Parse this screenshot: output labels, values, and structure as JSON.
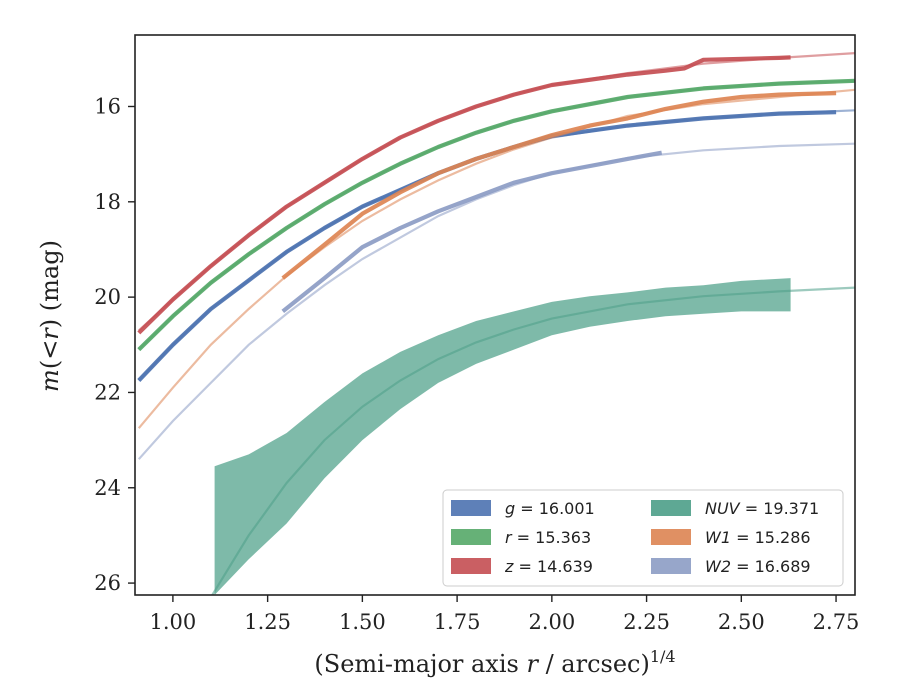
{
  "chart_data": {
    "type": "line",
    "xlabel_main": "(Semi-major axis ",
    "xlabel_r": "r",
    "xlabel_tail": " / arcsec)",
    "xlabel_exp": "1/4",
    "ylabel_main": "m",
    "ylabel_mid": "(<",
    "ylabel_r": "r",
    "ylabel_tail": ") (mag)",
    "xlim": [
      0.9,
      2.8
    ],
    "ylim": [
      26.25,
      14.5
    ],
    "y_inverted": true,
    "x_ticks": [
      1.0,
      1.25,
      1.5,
      1.75,
      2.0,
      2.25,
      2.5,
      2.75
    ],
    "x_tick_labels": [
      "1.00",
      "1.25",
      "1.50",
      "1.75",
      "2.00",
      "2.25",
      "2.50",
      "2.75"
    ],
    "y_ticks": [
      16,
      18,
      20,
      22,
      24,
      26
    ],
    "y_tick_labels": [
      "16",
      "18",
      "20",
      "22",
      "24",
      "26"
    ],
    "grid": false,
    "legend_placement": "lower-right",
    "series": [
      {
        "key": "g",
        "band": "g",
        "label_value": "= 16.001",
        "color": "#4c72b0",
        "model_x": [
          0.91,
          1.0,
          1.1,
          1.2,
          1.3,
          1.4,
          1.5,
          1.6,
          1.7,
          1.8,
          1.9,
          2.0,
          2.2,
          2.4,
          2.6,
          2.8
        ],
        "model_y": [
          21.75,
          21.0,
          20.25,
          19.65,
          19.05,
          18.55,
          18.1,
          17.75,
          17.4,
          17.1,
          16.85,
          16.65,
          16.4,
          16.25,
          16.15,
          16.08
        ],
        "data_x": [
          0.91,
          1.0,
          1.1,
          1.2,
          1.3,
          1.4,
          1.5,
          1.6,
          1.7,
          1.8,
          1.9,
          2.0,
          2.2,
          2.4,
          2.6,
          2.75
        ],
        "data_y": [
          21.75,
          21.0,
          20.25,
          19.65,
          19.05,
          18.55,
          18.1,
          17.75,
          17.4,
          17.1,
          16.85,
          16.62,
          16.4,
          16.25,
          16.15,
          16.12
        ],
        "data_err": []
      },
      {
        "key": "r",
        "band": "r",
        "label_value": "= 15.363",
        "color": "#55a868",
        "model_x": [
          0.91,
          1.0,
          1.1,
          1.2,
          1.3,
          1.4,
          1.5,
          1.6,
          1.7,
          1.8,
          1.9,
          2.0,
          2.2,
          2.4,
          2.6,
          2.8
        ],
        "model_y": [
          21.1,
          20.4,
          19.7,
          19.1,
          18.55,
          18.05,
          17.6,
          17.2,
          16.85,
          16.55,
          16.3,
          16.1,
          15.8,
          15.62,
          15.52,
          15.46
        ],
        "data_x": [
          0.91,
          1.0,
          1.1,
          1.2,
          1.3,
          1.4,
          1.5,
          1.6,
          1.7,
          1.8,
          1.9,
          2.0,
          2.2,
          2.4,
          2.6,
          2.8
        ],
        "data_y": [
          21.1,
          20.4,
          19.7,
          19.1,
          18.55,
          18.05,
          17.6,
          17.2,
          16.85,
          16.55,
          16.3,
          16.1,
          15.8,
          15.62,
          15.52,
          15.46
        ],
        "data_err": []
      },
      {
        "key": "z",
        "band": "z",
        "label_value": "= 14.639",
        "color": "#c44e52",
        "model_x": [
          0.91,
          1.0,
          1.1,
          1.2,
          1.3,
          1.4,
          1.5,
          1.6,
          1.7,
          1.8,
          1.9,
          2.0,
          2.2,
          2.4,
          2.6,
          2.8
        ],
        "model_y": [
          20.7,
          20.05,
          19.35,
          18.7,
          18.1,
          17.6,
          17.1,
          16.65,
          16.3,
          16.0,
          15.75,
          15.55,
          15.3,
          15.1,
          14.98,
          14.88
        ],
        "data_x": [
          0.91,
          1.0,
          1.1,
          1.2,
          1.3,
          1.4,
          1.5,
          1.6,
          1.7,
          1.8,
          1.9,
          2.0,
          2.2,
          2.3,
          2.35,
          2.4,
          2.6,
          2.63
        ],
        "data_y": [
          20.75,
          20.05,
          19.35,
          18.7,
          18.1,
          17.6,
          17.1,
          16.65,
          16.3,
          16.0,
          15.75,
          15.55,
          15.33,
          15.25,
          15.2,
          15.02,
          14.98,
          14.97
        ],
        "data_err": []
      },
      {
        "key": "nuv",
        "band": "NUV",
        "label_value": "= 19.371",
        "color": "#4c9f88",
        "model_x": [
          1.1,
          1.2,
          1.3,
          1.4,
          1.5,
          1.6,
          1.7,
          1.8,
          1.9,
          2.0,
          2.2,
          2.4,
          2.6,
          2.8
        ],
        "model_y": [
          26.3,
          25.0,
          23.9,
          23.0,
          22.3,
          21.75,
          21.3,
          20.95,
          20.68,
          20.45,
          20.15,
          19.98,
          19.88,
          19.8
        ],
        "data_x": [
          1.11,
          1.2,
          1.3,
          1.4,
          1.5,
          1.6,
          1.7,
          1.8,
          1.9,
          2.0,
          2.1,
          2.2,
          2.3,
          2.4,
          2.5,
          2.63
        ],
        "data_y": [
          24.9,
          24.4,
          23.8,
          23.0,
          22.3,
          21.75,
          21.3,
          20.95,
          20.7,
          20.45,
          20.3,
          20.2,
          20.1,
          20.05,
          19.98,
          19.95
        ],
        "data_err": [
          1.35,
          1.1,
          0.95,
          0.8,
          0.7,
          0.6,
          0.5,
          0.45,
          0.4,
          0.35,
          0.32,
          0.3,
          0.3,
          0.3,
          0.32,
          0.35
        ]
      },
      {
        "key": "w1",
        "band": "W1",
        "label_value": "= 15.286",
        "color": "#dd8452",
        "model_x": [
          0.91,
          1.0,
          1.1,
          1.2,
          1.3,
          1.4,
          1.5,
          1.6,
          1.7,
          1.8,
          1.9,
          2.0,
          2.2,
          2.4,
          2.6,
          2.8
        ],
        "model_y": [
          22.75,
          21.9,
          21.0,
          20.25,
          19.55,
          18.95,
          18.4,
          17.95,
          17.55,
          17.2,
          16.9,
          16.65,
          16.2,
          15.95,
          15.8,
          15.65
        ],
        "data_x": [
          1.29,
          1.4,
          1.5,
          1.6,
          1.7,
          1.8,
          1.9,
          2.0,
          2.1,
          2.2,
          2.3,
          2.4,
          2.5,
          2.6,
          2.75
        ],
        "data_y": [
          19.6,
          18.9,
          18.25,
          17.8,
          17.4,
          17.1,
          16.85,
          16.6,
          16.4,
          16.25,
          16.05,
          15.9,
          15.8,
          15.75,
          15.72
        ],
        "data_err": []
      },
      {
        "key": "w2",
        "band": "W2",
        "label_value": "= 16.689",
        "color": "#8c9cc4",
        "model_x": [
          0.91,
          1.0,
          1.1,
          1.2,
          1.3,
          1.4,
          1.5,
          1.6,
          1.7,
          1.8,
          1.9,
          2.0,
          2.2,
          2.4,
          2.6,
          2.8
        ],
        "model_y": [
          23.4,
          22.6,
          21.8,
          21.0,
          20.35,
          19.75,
          19.2,
          18.75,
          18.3,
          17.95,
          17.65,
          17.4,
          17.08,
          16.92,
          16.83,
          16.78
        ],
        "data_x": [
          1.29,
          1.4,
          1.5,
          1.6,
          1.7,
          1.8,
          1.9,
          2.0,
          2.1,
          2.2,
          2.29
        ],
        "data_y": [
          20.3,
          19.6,
          18.95,
          18.55,
          18.2,
          17.9,
          17.6,
          17.4,
          17.25,
          17.1,
          16.97
        ],
        "data_err": []
      }
    ],
    "legend_order": [
      "g",
      "r",
      "z",
      "nuv",
      "w1",
      "w2"
    ]
  }
}
